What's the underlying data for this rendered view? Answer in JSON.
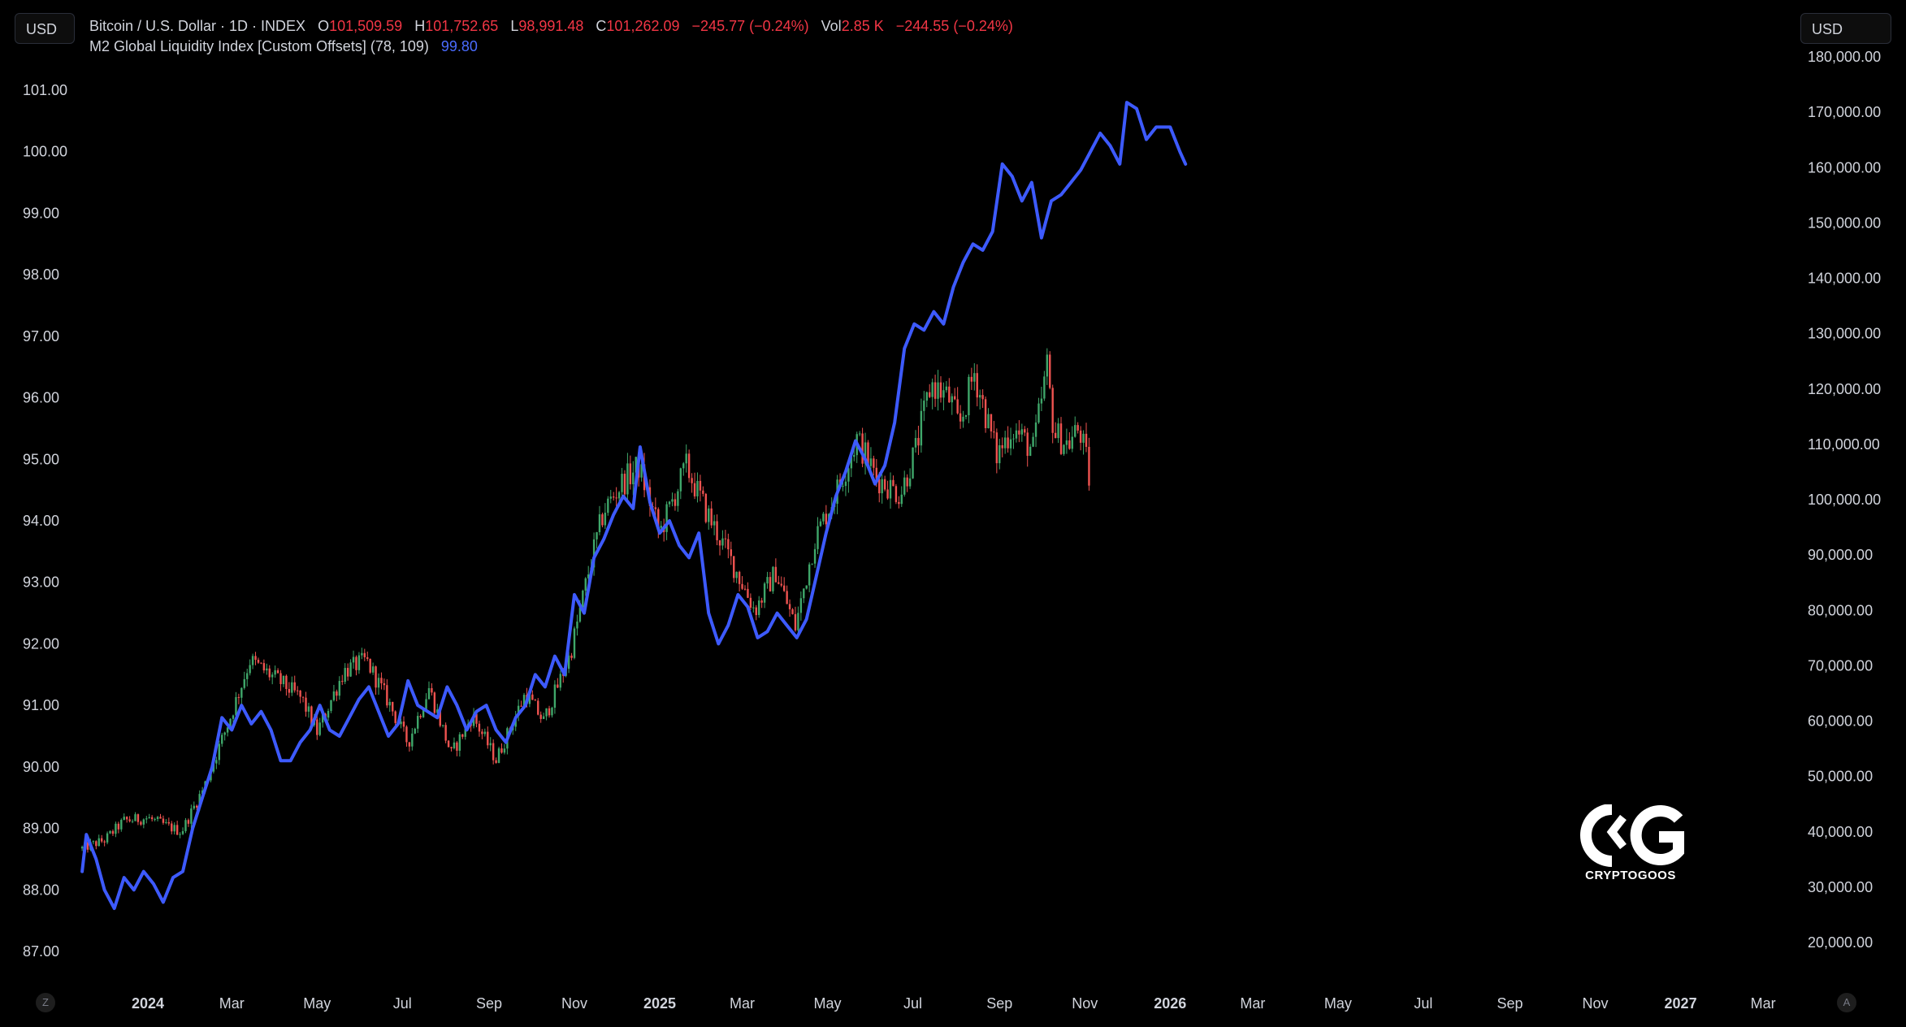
{
  "header": {
    "currency_left": "USD",
    "currency_right": "USD",
    "symbol": "Bitcoin / U.S. Dollar · 1D · INDEX",
    "open_label": "O",
    "open": "101,509.59",
    "high_label": "H",
    "high": "101,752.65",
    "low_label": "L",
    "low": "98,991.48",
    "close_label": "C",
    "close": "101,262.09",
    "change": "−245.77 (−0.24%)",
    "vol_label": "Vol",
    "vol": "2.85 K",
    "vol_change": "−244.55 (−0.24%)",
    "indicator": "M2 Global Liquidity Index [Custom Offsets] (78, 109)",
    "indicator_value": "99.80"
  },
  "corner_buttons": {
    "left": "Z",
    "right": "A"
  },
  "logo": {
    "name": "CRYPTOGOOS"
  },
  "colors": {
    "m2_line": "#3d5afe",
    "up": "#3fa76a",
    "down": "#ef5350",
    "background": "#000000",
    "text": "#d1d4dc"
  },
  "chart_data": {
    "type": "line",
    "left_axis": {
      "ticks": [
        "101.00",
        "100.00",
        "99.00",
        "98.00",
        "97.00",
        "96.00",
        "95.00",
        "94.00",
        "93.00",
        "92.00",
        "91.00",
        "90.00",
        "89.00",
        "88.00",
        "87.00"
      ],
      "range": [
        86.8,
        101.6
      ]
    },
    "right_axis": {
      "ticks": [
        "180,000.00",
        "170,000.00",
        "160,000.00",
        "150,000.00",
        "140,000.00",
        "130,000.00",
        "120,000.00",
        "110,000.00",
        "100,000.00",
        "90,000.00",
        "80,000.00",
        "70,000.00",
        "60,000.00",
        "50,000.00",
        "40,000.00",
        "30,000.00",
        "20,000.00"
      ],
      "range": [
        15000,
        180000
      ]
    },
    "x_axis": {
      "ticks": [
        {
          "label": "2024",
          "date": "2024-01-01",
          "major": true
        },
        {
          "label": "Mar",
          "date": "2024-03-01"
        },
        {
          "label": "May",
          "date": "2024-05-01"
        },
        {
          "label": "Jul",
          "date": "2024-07-01"
        },
        {
          "label": "Sep",
          "date": "2024-09-01"
        },
        {
          "label": "Nov",
          "date": "2024-11-01"
        },
        {
          "label": "2025",
          "date": "2025-01-01",
          "major": true
        },
        {
          "label": "Mar",
          "date": "2025-03-01"
        },
        {
          "label": "May",
          "date": "2025-05-01"
        },
        {
          "label": "Jul",
          "date": "2025-07-01"
        },
        {
          "label": "Sep",
          "date": "2025-09-01"
        },
        {
          "label": "Nov",
          "date": "2025-11-01"
        },
        {
          "label": "2026",
          "date": "2026-01-01",
          "major": true
        },
        {
          "label": "Mar",
          "date": "2026-03-01"
        },
        {
          "label": "May",
          "date": "2026-05-01"
        },
        {
          "label": "Jul",
          "date": "2026-07-01"
        },
        {
          "label": "Sep",
          "date": "2026-09-01"
        },
        {
          "label": "Nov",
          "date": "2026-11-01"
        },
        {
          "label": "2027",
          "date": "2027-01-01",
          "major": true
        },
        {
          "label": "Mar",
          "date": "2027-03-01"
        }
      ]
    },
    "series": [
      {
        "name": "M2 Global Liquidity Index [Custom Offsets] (78, 109)",
        "axis": "left",
        "style": "line",
        "points": [
          [
            "2023-11-15",
            88.3
          ],
          [
            "2023-11-18",
            88.9
          ],
          [
            "2023-11-25",
            88.5
          ],
          [
            "2023-12-01",
            88.0
          ],
          [
            "2023-12-08",
            87.7
          ],
          [
            "2023-12-15",
            88.2
          ],
          [
            "2023-12-22",
            88.0
          ],
          [
            "2023-12-29",
            88.3
          ],
          [
            "2024-01-05",
            88.1
          ],
          [
            "2024-01-12",
            87.8
          ],
          [
            "2024-01-19",
            88.2
          ],
          [
            "2024-01-26",
            88.3
          ],
          [
            "2024-02-02",
            89.0
          ],
          [
            "2024-02-09",
            89.5
          ],
          [
            "2024-02-16",
            90.0
          ],
          [
            "2024-02-23",
            90.8
          ],
          [
            "2024-03-01",
            90.6
          ],
          [
            "2024-03-08",
            91.0
          ],
          [
            "2024-03-15",
            90.7
          ],
          [
            "2024-03-22",
            90.9
          ],
          [
            "2024-03-29",
            90.6
          ],
          [
            "2024-04-05",
            90.1
          ],
          [
            "2024-04-12",
            90.1
          ],
          [
            "2024-04-19",
            90.4
          ],
          [
            "2024-04-26",
            90.6
          ],
          [
            "2024-05-03",
            91.0
          ],
          [
            "2024-05-10",
            90.6
          ],
          [
            "2024-05-17",
            90.5
          ],
          [
            "2024-05-24",
            90.8
          ],
          [
            "2024-05-31",
            91.1
          ],
          [
            "2024-06-07",
            91.3
          ],
          [
            "2024-06-14",
            90.9
          ],
          [
            "2024-06-21",
            90.5
          ],
          [
            "2024-06-28",
            90.7
          ],
          [
            "2024-07-05",
            91.4
          ],
          [
            "2024-07-12",
            91.0
          ],
          [
            "2024-07-19",
            90.9
          ],
          [
            "2024-07-26",
            90.8
          ],
          [
            "2024-08-02",
            91.3
          ],
          [
            "2024-08-09",
            91.0
          ],
          [
            "2024-08-16",
            90.6
          ],
          [
            "2024-08-23",
            90.9
          ],
          [
            "2024-08-30",
            91.0
          ],
          [
            "2024-09-06",
            90.6
          ],
          [
            "2024-09-13",
            90.4
          ],
          [
            "2024-09-20",
            90.8
          ],
          [
            "2024-09-27",
            91.0
          ],
          [
            "2024-10-04",
            91.5
          ],
          [
            "2024-10-11",
            91.3
          ],
          [
            "2024-10-18",
            91.8
          ],
          [
            "2024-10-25",
            91.5
          ],
          [
            "2024-11-01",
            92.8
          ],
          [
            "2024-11-08",
            92.5
          ],
          [
            "2024-11-15",
            93.4
          ],
          [
            "2024-11-22",
            93.7
          ],
          [
            "2024-11-29",
            94.1
          ],
          [
            "2024-12-06",
            94.4
          ],
          [
            "2024-12-13",
            94.2
          ],
          [
            "2024-12-18",
            95.2
          ],
          [
            "2024-12-25",
            94.3
          ],
          [
            "2025-01-01",
            93.8
          ],
          [
            "2025-01-08",
            94.0
          ],
          [
            "2025-01-15",
            93.6
          ],
          [
            "2025-01-22",
            93.4
          ],
          [
            "2025-01-29",
            93.8
          ],
          [
            "2025-02-05",
            92.5
          ],
          [
            "2025-02-12",
            92.0
          ],
          [
            "2025-02-19",
            92.3
          ],
          [
            "2025-02-26",
            92.8
          ],
          [
            "2025-03-05",
            92.6
          ],
          [
            "2025-03-12",
            92.1
          ],
          [
            "2025-03-19",
            92.2
          ],
          [
            "2025-03-26",
            92.5
          ],
          [
            "2025-04-02",
            92.3
          ],
          [
            "2025-04-09",
            92.1
          ],
          [
            "2025-04-16",
            92.4
          ],
          [
            "2025-04-23",
            93.1
          ],
          [
            "2025-04-30",
            93.8
          ],
          [
            "2025-05-07",
            94.4
          ],
          [
            "2025-05-14",
            94.8
          ],
          [
            "2025-05-21",
            95.3
          ],
          [
            "2025-05-28",
            95.0
          ],
          [
            "2025-06-04",
            94.6
          ],
          [
            "2025-06-11",
            94.9
          ],
          [
            "2025-06-18",
            95.6
          ],
          [
            "2025-06-25",
            96.8
          ],
          [
            "2025-07-02",
            97.2
          ],
          [
            "2025-07-09",
            97.1
          ],
          [
            "2025-07-16",
            97.4
          ],
          [
            "2025-07-23",
            97.2
          ],
          [
            "2025-07-30",
            97.8
          ],
          [
            "2025-08-06",
            98.2
          ],
          [
            "2025-08-13",
            98.5
          ],
          [
            "2025-08-20",
            98.4
          ],
          [
            "2025-08-27",
            98.7
          ],
          [
            "2025-09-03",
            99.8
          ],
          [
            "2025-09-10",
            99.6
          ],
          [
            "2025-09-17",
            99.2
          ],
          [
            "2025-09-24",
            99.5
          ],
          [
            "2025-10-01",
            98.6
          ],
          [
            "2025-10-08",
            99.2
          ],
          [
            "2025-10-15",
            99.3
          ],
          [
            "2025-10-22",
            99.5
          ],
          [
            "2025-10-29",
            99.7
          ],
          [
            "2025-11-05",
            100.0
          ],
          [
            "2025-11-12",
            100.3
          ],
          [
            "2025-11-19",
            100.1
          ],
          [
            "2025-11-26",
            99.8
          ],
          [
            "2025-12-01",
            100.8
          ],
          [
            "2025-12-08",
            100.7
          ],
          [
            "2025-12-15",
            100.2
          ],
          [
            "2025-12-22",
            100.4
          ],
          [
            "2026-01-01",
            100.4
          ],
          [
            "2026-01-08",
            100.0
          ],
          [
            "2026-01-12",
            99.8
          ]
        ]
      },
      {
        "name": "Bitcoin / U.S. Dollar · 1D · INDEX",
        "axis": "right",
        "style": "candlestick",
        "points": [
          [
            "2023-11-15",
            37000
          ],
          [
            "2023-12-01",
            38500
          ],
          [
            "2023-12-15",
            42000
          ],
          [
            "2024-01-01",
            42500
          ],
          [
            "2024-01-15",
            41000
          ],
          [
            "2024-01-25",
            40000
          ],
          [
            "2024-02-10",
            48000
          ],
          [
            "2024-02-28",
            60000
          ],
          [
            "2024-03-14",
            71000
          ],
          [
            "2024-03-25",
            69000
          ],
          [
            "2024-04-05",
            67000
          ],
          [
            "2024-04-20",
            64000
          ],
          [
            "2024-05-01",
            58000
          ],
          [
            "2024-05-20",
            69000
          ],
          [
            "2024-06-05",
            71000
          ],
          [
            "2024-06-20",
            64000
          ],
          [
            "2024-07-05",
            56000
          ],
          [
            "2024-07-20",
            66000
          ],
          [
            "2024-08-05",
            54000
          ],
          [
            "2024-08-20",
            61000
          ],
          [
            "2024-09-06",
            53000
          ],
          [
            "2024-09-27",
            65000
          ],
          [
            "2024-10-10",
            60000
          ],
          [
            "2024-10-29",
            72000
          ],
          [
            "2024-11-12",
            88000
          ],
          [
            "2024-11-22",
            98000
          ],
          [
            "2024-12-05",
            103000
          ],
          [
            "2024-12-17",
            106000
          ],
          [
            "2025-01-01",
            94000
          ],
          [
            "2025-01-20",
            106000
          ],
          [
            "2025-02-03",
            98000
          ],
          [
            "2025-02-25",
            87000
          ],
          [
            "2025-03-10",
            80000
          ],
          [
            "2025-03-25",
            87000
          ],
          [
            "2025-04-08",
            77000
          ],
          [
            "2025-04-22",
            93000
          ],
          [
            "2025-05-10",
            103000
          ],
          [
            "2025-05-22",
            111000
          ],
          [
            "2025-06-05",
            104000
          ],
          [
            "2025-06-22",
            101000
          ],
          [
            "2025-07-03",
            109000
          ],
          [
            "2025-07-14",
            121000
          ],
          [
            "2025-07-28",
            118000
          ],
          [
            "2025-08-03",
            113000
          ],
          [
            "2025-08-14",
            123000
          ],
          [
            "2025-08-30",
            108000
          ],
          [
            "2025-09-10",
            113000
          ],
          [
            "2025-09-25",
            109000
          ],
          [
            "2025-10-05",
            124000
          ],
          [
            "2025-10-10",
            112000
          ],
          [
            "2025-10-20",
            110000
          ],
          [
            "2025-10-28",
            113000
          ],
          [
            "2025-11-03",
            106000
          ],
          [
            "2025-11-05",
            101262
          ]
        ]
      }
    ]
  }
}
